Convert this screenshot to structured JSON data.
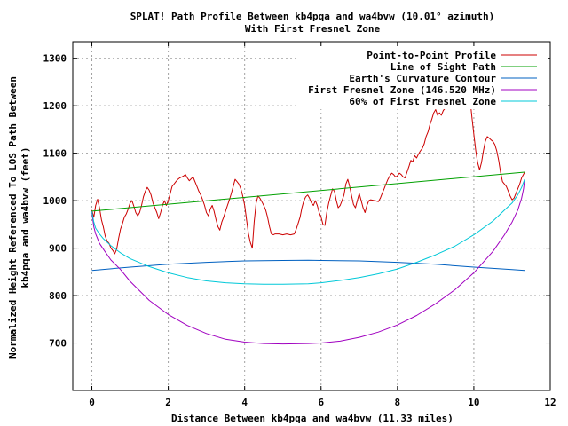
{
  "chart_data": {
    "type": "line",
    "title": "SPLAT! Path Profile Between kb4pqa and wa4bvw (10.01° azimuth)",
    "subtitle": "With First Fresnel Zone",
    "xlabel": "Distance Between kb4pqa and wa4bvw (11.33 miles)",
    "ylabel_line1": "Normalized Height Referenced To LOS Path Between",
    "ylabel_line2": "kb4pqa and wa4bvw (feet)",
    "xlim": [
      -0.5,
      12
    ],
    "ylim": [
      600,
      1335
    ],
    "x_ticks": [
      0,
      2,
      4,
      6,
      8,
      10,
      12
    ],
    "y_ticks": [
      700,
      800,
      900,
      1000,
      1100,
      1200,
      1300
    ],
    "grid": true,
    "legend_position": "top-right",
    "series": [
      {
        "name": "Point-to-Point Profile",
        "color": "#cc0000",
        "points": [
          [
            0,
            980
          ],
          [
            0.05,
            965
          ],
          [
            0.1,
            990
          ],
          [
            0.15,
            1003
          ],
          [
            0.2,
            985
          ],
          [
            0.25,
            960
          ],
          [
            0.3,
            945
          ],
          [
            0.35,
            925
          ],
          [
            0.4,
            915
          ],
          [
            0.45,
            910
          ],
          [
            0.5,
            900
          ],
          [
            0.55,
            895
          ],
          [
            0.6,
            888
          ],
          [
            0.65,
            898
          ],
          [
            0.7,
            920
          ],
          [
            0.75,
            940
          ],
          [
            0.8,
            952
          ],
          [
            0.85,
            965
          ],
          [
            0.9,
            972
          ],
          [
            0.95,
            982
          ],
          [
            1.0,
            995
          ],
          [
            1.05,
            1000
          ],
          [
            1.1,
            988
          ],
          [
            1.15,
            975
          ],
          [
            1.2,
            968
          ],
          [
            1.25,
            975
          ],
          [
            1.3,
            990
          ],
          [
            1.35,
            1008
          ],
          [
            1.4,
            1020
          ],
          [
            1.45,
            1028
          ],
          [
            1.5,
            1022
          ],
          [
            1.55,
            1012
          ],
          [
            1.6,
            995
          ],
          [
            1.65,
            985
          ],
          [
            1.7,
            975
          ],
          [
            1.75,
            962
          ],
          [
            1.8,
            975
          ],
          [
            1.85,
            990
          ],
          [
            1.9,
            1000
          ],
          [
            1.95,
            990
          ],
          [
            2.0,
            1000
          ],
          [
            2.05,
            1015
          ],
          [
            2.1,
            1030
          ],
          [
            2.15,
            1035
          ],
          [
            2.2,
            1040
          ],
          [
            2.25,
            1045
          ],
          [
            2.3,
            1048
          ],
          [
            2.35,
            1050
          ],
          [
            2.4,
            1052
          ],
          [
            2.45,
            1055
          ],
          [
            2.5,
            1048
          ],
          [
            2.55,
            1042
          ],
          [
            2.6,
            1046
          ],
          [
            2.65,
            1050
          ],
          [
            2.7,
            1040
          ],
          [
            2.75,
            1030
          ],
          [
            2.8,
            1020
          ],
          [
            2.85,
            1012
          ],
          [
            2.9,
            1002
          ],
          [
            2.95,
            990
          ],
          [
            3.0,
            975
          ],
          [
            3.05,
            968
          ],
          [
            3.1,
            982
          ],
          [
            3.15,
            990
          ],
          [
            3.2,
            978
          ],
          [
            3.25,
            960
          ],
          [
            3.3,
            945
          ],
          [
            3.35,
            938
          ],
          [
            3.4,
            955
          ],
          [
            3.45,
            965
          ],
          [
            3.5,
            978
          ],
          [
            3.55,
            990
          ],
          [
            3.6,
            1002
          ],
          [
            3.65,
            1015
          ],
          [
            3.7,
            1030
          ],
          [
            3.75,
            1045
          ],
          [
            3.8,
            1040
          ],
          [
            3.85,
            1035
          ],
          [
            3.9,
            1025
          ],
          [
            3.95,
            1010
          ],
          [
            4.0,
            990
          ],
          [
            4.05,
            960
          ],
          [
            4.1,
            930
          ],
          [
            4.15,
            912
          ],
          [
            4.2,
            900
          ],
          [
            4.25,
            955
          ],
          [
            4.3,
            995
          ],
          [
            4.35,
            1010
          ],
          [
            4.4,
            1005
          ],
          [
            4.45,
            998
          ],
          [
            4.5,
            990
          ],
          [
            4.55,
            980
          ],
          [
            4.6,
            965
          ],
          [
            4.65,
            945
          ],
          [
            4.7,
            930
          ],
          [
            4.75,
            928
          ],
          [
            4.8,
            930
          ],
          [
            4.9,
            930
          ],
          [
            5.0,
            928
          ],
          [
            5.1,
            930
          ],
          [
            5.2,
            928
          ],
          [
            5.3,
            930
          ],
          [
            5.35,
            940
          ],
          [
            5.4,
            952
          ],
          [
            5.45,
            965
          ],
          [
            5.5,
            985
          ],
          [
            5.55,
            1000
          ],
          [
            5.6,
            1008
          ],
          [
            5.65,
            1012
          ],
          [
            5.7,
            1005
          ],
          [
            5.75,
            995
          ],
          [
            5.8,
            990
          ],
          [
            5.85,
            1000
          ],
          [
            5.9,
            990
          ],
          [
            5.95,
            975
          ],
          [
            6.0,
            965
          ],
          [
            6.05,
            950
          ],
          [
            6.1,
            948
          ],
          [
            6.15,
            975
          ],
          [
            6.2,
            995
          ],
          [
            6.25,
            1010
          ],
          [
            6.3,
            1025
          ],
          [
            6.35,
            1020
          ],
          [
            6.4,
            1000
          ],
          [
            6.45,
            985
          ],
          [
            6.5,
            990
          ],
          [
            6.55,
            1000
          ],
          [
            6.6,
            1012
          ],
          [
            6.65,
            1035
          ],
          [
            6.7,
            1045
          ],
          [
            6.75,
            1030
          ],
          [
            6.8,
            1010
          ],
          [
            6.85,
            992
          ],
          [
            6.9,
            985
          ],
          [
            6.95,
            1000
          ],
          [
            7.0,
            1015
          ],
          [
            7.05,
            1000
          ],
          [
            7.1,
            985
          ],
          [
            7.15,
            975
          ],
          [
            7.2,
            990
          ],
          [
            7.25,
            1000
          ],
          [
            7.3,
            1002
          ],
          [
            7.4,
            1000
          ],
          [
            7.5,
            998
          ],
          [
            7.55,
            1005
          ],
          [
            7.6,
            1015
          ],
          [
            7.65,
            1025
          ],
          [
            7.7,
            1035
          ],
          [
            7.75,
            1045
          ],
          [
            7.8,
            1052
          ],
          [
            7.85,
            1058
          ],
          [
            7.9,
            1055
          ],
          [
            7.95,
            1050
          ],
          [
            8.0,
            1052
          ],
          [
            8.05,
            1058
          ],
          [
            8.1,
            1055
          ],
          [
            8.15,
            1050
          ],
          [
            8.2,
            1048
          ],
          [
            8.25,
            1060
          ],
          [
            8.3,
            1072
          ],
          [
            8.35,
            1085
          ],
          [
            8.4,
            1082
          ],
          [
            8.45,
            1095
          ],
          [
            8.5,
            1090
          ],
          [
            8.55,
            1098
          ],
          [
            8.6,
            1105
          ],
          [
            8.65,
            1110
          ],
          [
            8.7,
            1120
          ],
          [
            8.75,
            1135
          ],
          [
            8.8,
            1145
          ],
          [
            8.85,
            1160
          ],
          [
            8.9,
            1172
          ],
          [
            8.95,
            1185
          ],
          [
            9.0,
            1192
          ],
          [
            9.05,
            1180
          ],
          [
            9.1,
            1185
          ],
          [
            9.15,
            1180
          ],
          [
            9.2,
            1190
          ],
          [
            9.25,
            1195
          ],
          [
            9.3,
            1198
          ],
          [
            9.35,
            1205
          ],
          [
            9.4,
            1215
          ],
          [
            9.45,
            1225
          ],
          [
            9.5,
            1232
          ],
          [
            9.55,
            1225
          ],
          [
            9.6,
            1235
          ],
          [
            9.65,
            1240
          ],
          [
            9.7,
            1252
          ],
          [
            9.75,
            1265
          ],
          [
            9.8,
            1285
          ],
          [
            9.85,
            1255
          ],
          [
            9.9,
            1215
          ],
          [
            9.95,
            1175
          ],
          [
            10.0,
            1140
          ],
          [
            10.05,
            1105
          ],
          [
            10.1,
            1080
          ],
          [
            10.15,
            1065
          ],
          [
            10.2,
            1080
          ],
          [
            10.25,
            1105
          ],
          [
            10.3,
            1125
          ],
          [
            10.35,
            1135
          ],
          [
            10.4,
            1132
          ],
          [
            10.45,
            1128
          ],
          [
            10.5,
            1125
          ],
          [
            10.55,
            1118
          ],
          [
            10.6,
            1105
          ],
          [
            10.65,
            1085
          ],
          [
            10.7,
            1060
          ],
          [
            10.75,
            1040
          ],
          [
            10.8,
            1035
          ],
          [
            10.85,
            1030
          ],
          [
            10.9,
            1020
          ],
          [
            10.95,
            1010
          ],
          [
            11.0,
            1002
          ],
          [
            11.05,
            1005
          ],
          [
            11.1,
            1015
          ],
          [
            11.15,
            1025
          ],
          [
            11.2,
            1035
          ],
          [
            11.25,
            1048
          ],
          [
            11.33,
            1060
          ]
        ]
      },
      {
        "name": "Line of Sight Path",
        "color": "#00a000",
        "points": [
          [
            0,
            978
          ],
          [
            11.33,
            1060
          ]
        ]
      },
      {
        "name": "Earth's Curvature Contour",
        "color": "#0060c0",
        "points": [
          [
            0,
            853
          ],
          [
            1,
            860
          ],
          [
            2,
            866
          ],
          [
            3,
            870
          ],
          [
            4,
            873
          ],
          [
            5,
            874
          ],
          [
            5.665,
            874.5
          ],
          [
            6,
            874
          ],
          [
            7,
            873
          ],
          [
            8,
            870
          ],
          [
            9,
            866
          ],
          [
            10,
            860
          ],
          [
            11,
            855
          ],
          [
            11.33,
            853
          ]
        ]
      },
      {
        "name": "First Fresnel Zone (146.520 MHz)",
        "color": "#a000c0",
        "points": [
          [
            0,
            975
          ],
          [
            0.05,
            945
          ],
          [
            0.1,
            930
          ],
          [
            0.2,
            910
          ],
          [
            0.3,
            898
          ],
          [
            0.5,
            875
          ],
          [
            0.75,
            855
          ],
          [
            1,
            830
          ],
          [
            1.5,
            790
          ],
          [
            2,
            760
          ],
          [
            2.5,
            737
          ],
          [
            3,
            720
          ],
          [
            3.5,
            708
          ],
          [
            4,
            702
          ],
          [
            4.5,
            699
          ],
          [
            5,
            698
          ],
          [
            5.665,
            699
          ],
          [
            6,
            700
          ],
          [
            6.5,
            704
          ],
          [
            7,
            712
          ],
          [
            7.5,
            723
          ],
          [
            8,
            738
          ],
          [
            8.5,
            758
          ],
          [
            9,
            783
          ],
          [
            9.5,
            812
          ],
          [
            10,
            848
          ],
          [
            10.5,
            893
          ],
          [
            10.8,
            928
          ],
          [
            11,
            955
          ],
          [
            11.15,
            980
          ],
          [
            11.25,
            1005
          ],
          [
            11.3,
            1025
          ],
          [
            11.33,
            1045
          ]
        ]
      },
      {
        "name": "60% of First Fresnel Zone",
        "color": "#00c8d8",
        "points": [
          [
            0,
            977
          ],
          [
            0.05,
            955
          ],
          [
            0.1,
            942
          ],
          [
            0.2,
            930
          ],
          [
            0.3,
            920
          ],
          [
            0.5,
            905
          ],
          [
            0.75,
            890
          ],
          [
            1,
            878
          ],
          [
            1.5,
            861
          ],
          [
            2,
            848
          ],
          [
            2.5,
            838
          ],
          [
            3,
            831
          ],
          [
            3.5,
            827
          ],
          [
            4,
            825
          ],
          [
            4.5,
            824
          ],
          [
            5,
            824
          ],
          [
            5.665,
            825
          ],
          [
            6,
            827
          ],
          [
            6.5,
            832
          ],
          [
            7,
            838
          ],
          [
            7.5,
            846
          ],
          [
            8,
            856
          ],
          [
            8.5,
            870
          ],
          [
            9,
            886
          ],
          [
            9.5,
            904
          ],
          [
            10,
            928
          ],
          [
            10.5,
            957
          ],
          [
            10.8,
            980
          ],
          [
            11,
            995
          ],
          [
            11.15,
            1012
          ],
          [
            11.25,
            1028
          ],
          [
            11.33,
            1045
          ]
        ]
      }
    ]
  }
}
